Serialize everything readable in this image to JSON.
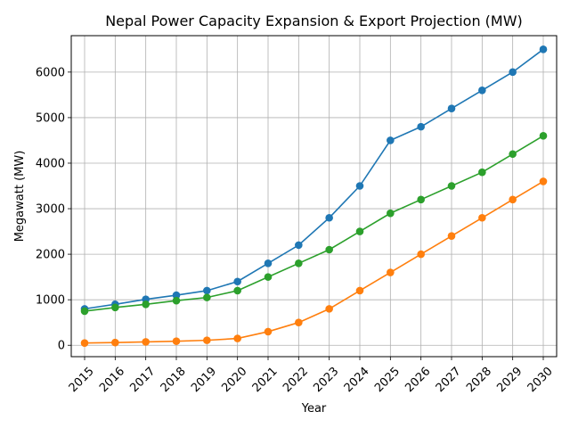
{
  "chart_data": {
    "type": "line",
    "title": "Nepal Power Capacity Expansion & Export Projection (MW)",
    "xlabel": "Year",
    "ylabel": "Megawatt (MW)",
    "categories": [
      "2015",
      "2016",
      "2017",
      "2018",
      "2019",
      "2020",
      "2021",
      "2022",
      "2023",
      "2024",
      "2025",
      "2026",
      "2027",
      "2028",
      "2029",
      "2030"
    ],
    "ylim": [
      -250,
      6800
    ],
    "yticks": [
      0,
      1000,
      2000,
      3000,
      4000,
      5000,
      6000
    ],
    "grid": true,
    "legend": "none",
    "series": [
      {
        "name": "series-1",
        "color": "#1f77b4",
        "values": [
          800,
          900,
          1010,
          1100,
          1200,
          1400,
          1800,
          2200,
          2800,
          3500,
          4500,
          4800,
          5200,
          5600,
          6000,
          6500
        ]
      },
      {
        "name": "series-2",
        "color": "#ff7f0e",
        "values": [
          50,
          60,
          75,
          90,
          110,
          150,
          300,
          500,
          800,
          1200,
          1600,
          2000,
          2400,
          2800,
          3200,
          3600
        ]
      },
      {
        "name": "series-3",
        "color": "#2ca02c",
        "values": [
          750,
          830,
          900,
          980,
          1050,
          1200,
          1500,
          1800,
          2100,
          2500,
          2900,
          3200,
          3500,
          3800,
          4200,
          4600
        ]
      }
    ]
  }
}
